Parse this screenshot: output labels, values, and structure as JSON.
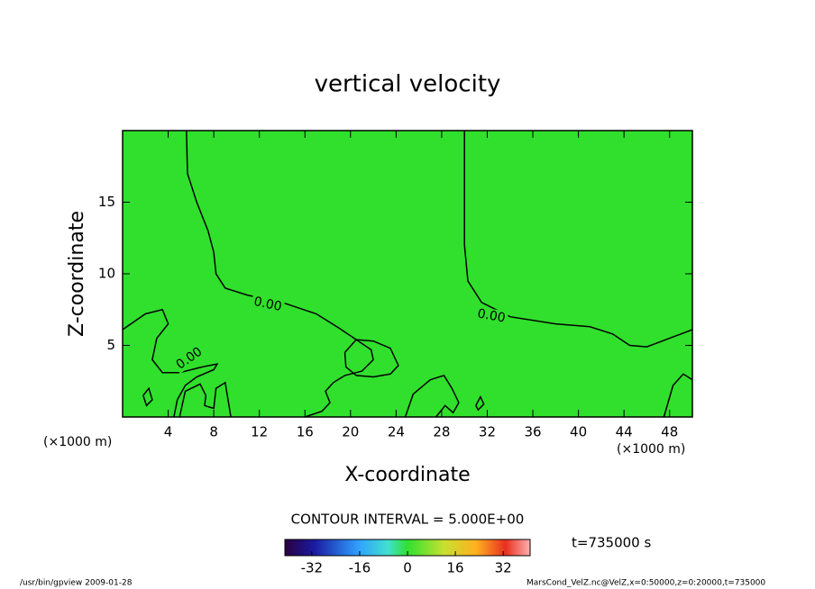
{
  "chart_data": {
    "type": "contour",
    "title": "vertical velocity",
    "xlabel": "X-coordinate",
    "ylabel": "Z-coordinate",
    "x_unit": "(×1000 m)",
    "y_unit": "(×1000 m)",
    "xlim": [
      0,
      50
    ],
    "ylim": [
      0,
      20
    ],
    "xticks": [
      4,
      8,
      12,
      16,
      20,
      24,
      28,
      32,
      36,
      40,
      44,
      48
    ],
    "yticks": [
      5,
      10,
      15
    ],
    "fill_color": "#30e02c",
    "contour_color": "#000000",
    "contours": [
      {
        "x": [
          5.6,
          5.7,
          6.5,
          7.5,
          8.0,
          8.2,
          9.0,
          11.0,
          14.0,
          17.0,
          19.0,
          20.5,
          21.8,
          22.0,
          21.0,
          19.5,
          18.5,
          17.8,
          18.2,
          17.5,
          16.0
        ],
        "y": [
          20,
          17,
          15,
          13,
          11.5,
          10,
          9,
          8.5,
          8,
          7.2,
          6.2,
          5.4,
          4.7,
          4.0,
          3.2,
          2.9,
          2.4,
          1.8,
          1.0,
          0.4,
          0
        ]
      },
      {
        "x": [
          30.0,
          30.0,
          30.3,
          31.5,
          34.0,
          38.0,
          41.0,
          43.0,
          44.5,
          46.0,
          48.0,
          50.0
        ],
        "y": [
          20,
          12,
          9.5,
          8,
          7,
          6.5,
          6.3,
          5.8,
          5.0,
          4.9,
          5.5,
          6.1
        ]
      },
      {
        "x": [
          0,
          2.0,
          3.5,
          4.0,
          3.0,
          2.6,
          3.5,
          5.0,
          7.0,
          8.3,
          8.0,
          6.5,
          5.5,
          4.8,
          4.5
        ],
        "y": [
          6.1,
          7.2,
          7.5,
          6.5,
          5.5,
          4.0,
          3.1,
          3.1,
          3.5,
          3.7,
          3.3,
          2.8,
          2.2,
          1.2,
          0
        ]
      },
      {
        "x": [
          19.5,
          20.5,
          22.0,
          23.5,
          24.2,
          23.5,
          22.0,
          20.5,
          19.6,
          19.5
        ],
        "y": [
          4.5,
          5.4,
          5.3,
          4.8,
          3.6,
          3.0,
          2.8,
          2.9,
          3.5,
          4.5
        ]
      },
      {
        "x": [
          5.0,
          5.5,
          6.8,
          7.3,
          7.2,
          8.0,
          8.2,
          9.0,
          9.5
        ],
        "y": [
          0,
          1.8,
          2.3,
          1.5,
          0.8,
          0.6,
          2.0,
          2.4,
          0
        ]
      },
      {
        "x": [
          24.8,
          25.5,
          27.0,
          28.2,
          28.9,
          29.5,
          29.0,
          28.3,
          27.5
        ],
        "y": [
          0,
          1.6,
          2.6,
          2.9,
          2.0,
          1.0,
          0.3,
          0.8,
          0
        ]
      },
      {
        "x": [
          47.5,
          48.3,
          49.2,
          50.0
        ],
        "y": [
          0,
          2.2,
          3.0,
          2.6
        ]
      },
      {
        "x": [
          1.8,
          2.3,
          2.6,
          2.1,
          1.8
        ],
        "y": [
          1.5,
          2.0,
          1.2,
          0.8,
          1.5
        ]
      },
      {
        "x": [
          31.0,
          31.4,
          31.7,
          31.2,
          31.0
        ],
        "y": [
          0.8,
          1.4,
          0.9,
          0.5,
          0.8
        ]
      }
    ],
    "contour_labels": [
      "0.00",
      "0.00",
      "0.00"
    ],
    "contour_interval": "CONTOUR INTERVAL = 5.000E+00",
    "time_label": "t=735000 s",
    "clim": [
      -41,
      41
    ],
    "cticks": [
      -32,
      -16,
      0,
      16,
      32
    ],
    "footer_left": "/usr/bin/gpview  2009-01-28",
    "footer_right": "MarsCond_VelZ.nc@VelZ,x=0:50000,z=0:20000,t=735000"
  }
}
